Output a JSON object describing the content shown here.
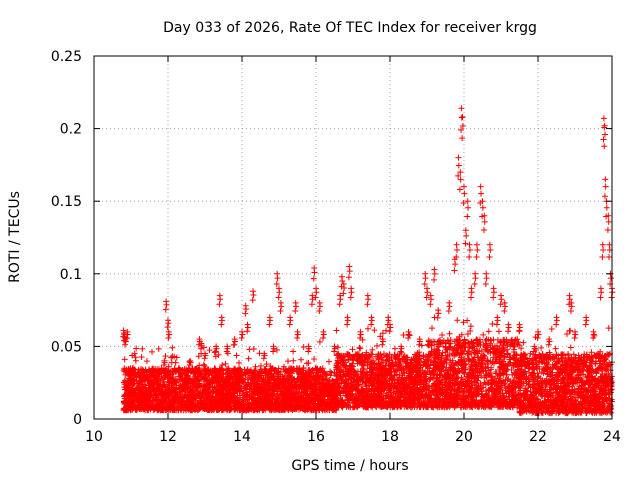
{
  "chart_data": {
    "type": "scatter",
    "title": "Day 033 of 2026, Rate Of TEC Index for receiver krgg",
    "xlabel": "GPS time / hours",
    "ylabel": "ROTI / TECUs",
    "xlim": [
      10,
      24
    ],
    "ylim": [
      0,
      0.25
    ],
    "xticks": [
      10,
      12,
      14,
      16,
      18,
      20,
      22,
      24
    ],
    "yticks": [
      0,
      0.05,
      0.1,
      0.15,
      0.2,
      0.25
    ],
    "xtick_labels": [
      "10",
      "12",
      "14",
      "16",
      "18",
      "20",
      "22",
      "24"
    ],
    "ytick_labels": [
      "0",
      "0.05",
      "0.1",
      "0.15",
      "0.2",
      "0.25"
    ],
    "grid": true,
    "marker": "+",
    "color": "#ff0000",
    "series": [
      {
        "name": "ROTI",
        "points": [
          [
            10.8,
            0.061
          ],
          [
            10.82,
            0.058
          ],
          [
            10.85,
            0.055
          ],
          [
            10.9,
            0.06
          ],
          [
            10.95,
            0.03
          ],
          [
            11.0,
            0.028
          ],
          [
            11.3,
            0.03
          ],
          [
            11.5,
            0.025
          ],
          [
            11.9,
            0.04
          ],
          [
            11.95,
            0.081
          ],
          [
            12.0,
            0.068
          ],
          [
            12.02,
            0.06
          ],
          [
            12.3,
            0.035
          ],
          [
            12.6,
            0.04
          ],
          [
            12.85,
            0.055
          ],
          [
            12.9,
            0.052
          ],
          [
            13.0,
            0.045
          ],
          [
            13.3,
            0.05
          ],
          [
            13.4,
            0.085
          ],
          [
            13.45,
            0.07
          ],
          [
            13.6,
            0.05
          ],
          [
            13.8,
            0.055
          ],
          [
            14.0,
            0.06
          ],
          [
            14.1,
            0.078
          ],
          [
            14.15,
            0.065
          ],
          [
            14.3,
            0.088
          ],
          [
            14.6,
            0.045
          ],
          [
            14.75,
            0.07
          ],
          [
            14.85,
            0.05
          ],
          [
            14.95,
            0.1
          ],
          [
            15.0,
            0.09
          ],
          [
            15.05,
            0.08
          ],
          [
            15.3,
            0.07
          ],
          [
            15.45,
            0.08
          ],
          [
            15.5,
            0.06
          ],
          [
            15.8,
            0.05
          ],
          [
            15.9,
            0.085
          ],
          [
            15.95,
            0.104
          ],
          [
            16.0,
            0.09
          ],
          [
            16.1,
            0.08
          ],
          [
            16.2,
            0.06
          ],
          [
            16.5,
            0.05
          ],
          [
            16.65,
            0.085
          ],
          [
            16.7,
            0.098
          ],
          [
            16.75,
            0.093
          ],
          [
            16.85,
            0.07
          ],
          [
            16.9,
            0.105
          ],
          [
            16.95,
            0.09
          ],
          [
            17.2,
            0.06
          ],
          [
            17.4,
            0.085
          ],
          [
            17.5,
            0.07
          ],
          [
            17.8,
            0.055
          ],
          [
            17.95,
            0.07
          ],
          [
            18.0,
            0.065
          ],
          [
            18.3,
            0.05
          ],
          [
            18.5,
            0.06
          ],
          [
            18.8,
            0.055
          ],
          [
            18.95,
            0.1
          ],
          [
            19.0,
            0.09
          ],
          [
            19.1,
            0.085
          ],
          [
            19.2,
            0.103
          ],
          [
            19.3,
            0.075
          ],
          [
            19.6,
            0.08
          ],
          [
            19.75,
            0.11
          ],
          [
            19.8,
            0.12
          ],
          [
            19.85,
            0.18
          ],
          [
            19.9,
            0.17
          ],
          [
            19.93,
            0.214
          ],
          [
            19.96,
            0.208
          ],
          [
            20.0,
            0.16
          ],
          [
            20.05,
            0.13
          ],
          [
            20.1,
            0.15
          ],
          [
            20.15,
            0.12
          ],
          [
            20.2,
            0.09
          ],
          [
            20.3,
            0.1
          ],
          [
            20.35,
            0.12
          ],
          [
            20.45,
            0.16
          ],
          [
            20.5,
            0.15
          ],
          [
            20.55,
            0.14
          ],
          [
            20.6,
            0.1
          ],
          [
            20.7,
            0.12
          ],
          [
            20.8,
            0.09
          ],
          [
            20.9,
            0.07
          ],
          [
            21.0,
            0.085
          ],
          [
            21.1,
            0.08
          ],
          [
            21.2,
            0.065
          ],
          [
            21.5,
            0.065
          ],
          [
            21.9,
            0.05
          ],
          [
            22.0,
            0.06
          ],
          [
            22.3,
            0.055
          ],
          [
            22.5,
            0.07
          ],
          [
            22.85,
            0.085
          ],
          [
            22.9,
            0.08
          ],
          [
            23.0,
            0.06
          ],
          [
            23.3,
            0.07
          ],
          [
            23.5,
            0.06
          ],
          [
            23.7,
            0.09
          ],
          [
            23.75,
            0.12
          ],
          [
            23.78,
            0.207
          ],
          [
            23.8,
            0.202
          ],
          [
            23.82,
            0.165
          ],
          [
            23.85,
            0.15
          ],
          [
            23.9,
            0.14
          ],
          [
            23.93,
            0.12
          ],
          [
            23.96,
            0.1
          ],
          [
            24.0,
            0.09
          ]
        ]
      }
    ],
    "band": [
      {
        "x0": 10.8,
        "x1": 16.3,
        "lo": 0.006,
        "hi": 0.035
      },
      {
        "x0": 16.3,
        "x1": 16.55,
        "lo": 0.006,
        "hi": 0.025
      },
      {
        "x0": 16.55,
        "x1": 19.0,
        "lo": 0.008,
        "hi": 0.045
      },
      {
        "x0": 19.0,
        "x1": 21.5,
        "lo": 0.008,
        "hi": 0.055
      },
      {
        "x0": 21.5,
        "x1": 24.0,
        "lo": 0.004,
        "hi": 0.045
      }
    ]
  }
}
